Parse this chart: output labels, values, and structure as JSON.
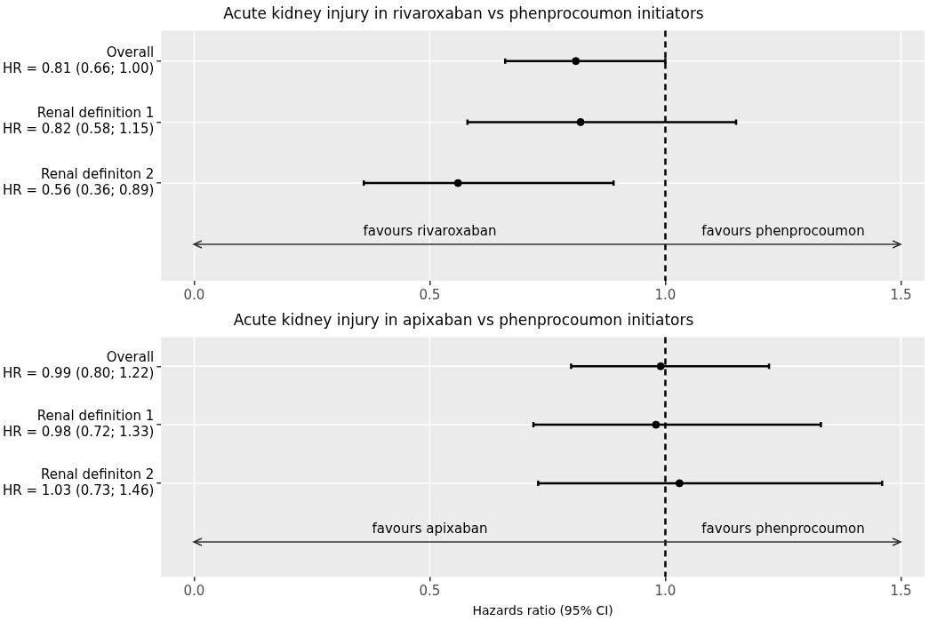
{
  "chart_data": [
    {
      "type": "scatter",
      "orientation": "horizontal",
      "title": "Acute kidney injury in rivaroxaban vs phenprocoumon initiators",
      "categories": [
        "Overall\nHR = 0.81 (0.66; 1.00)",
        "Renal definition 1\nHR = 0.82 (0.58; 1.15)",
        "Renal definiton 2\nHR = 0.56 (0.36; 0.89)"
      ],
      "series": [
        {
          "color": "#000000",
          "values": [
            0.81,
            0.82,
            0.56
          ],
          "errors": [
            [
              0.66,
              1.0
            ],
            [
              0.58,
              1.15
            ],
            [
              0.36,
              0.89
            ]
          ]
        }
      ],
      "xlim": [
        -0.07,
        1.55
      ],
      "xticks": [
        {
          "value": 0,
          "label": "0.0"
        },
        {
          "value": 0.5,
          "label": "0.5"
        },
        {
          "value": 1,
          "label": "1.0"
        },
        {
          "value": 1.5,
          "label": "1.5"
        }
      ],
      "ref_lines": [
        {
          "axis": "x",
          "value": 1,
          "line_style": "dashed",
          "color": "#000000"
        }
      ],
      "annotations": [
        "favours rivaroxaban",
        "favours phenprocoumon"
      ],
      "grid": true,
      "legend": false,
      "marker": "circle"
    },
    {
      "type": "scatter",
      "orientation": "horizontal",
      "title": "Acute kidney injury in apixaban vs phenprocoumon initiators",
      "xlabel": "Hazards ratio (95% CI)",
      "categories": [
        "Overall\nHR = 0.99 (0.80; 1.22)",
        "Renal definition 1\nHR = 0.98 (0.72; 1.33)",
        "Renal definiton 2\nHR = 1.03 (0.73; 1.46)"
      ],
      "series": [
        {
          "color": "#000000",
          "values": [
            0.99,
            0.98,
            1.03
          ],
          "errors": [
            [
              0.8,
              1.22
            ],
            [
              0.72,
              1.33
            ],
            [
              0.73,
              1.46
            ]
          ]
        }
      ],
      "xlim": [
        -0.07,
        1.55
      ],
      "xticks": [
        {
          "value": 0,
          "label": "0.0"
        },
        {
          "value": 0.5,
          "label": "0.5"
        },
        {
          "value": 1,
          "label": "1.0"
        },
        {
          "value": 1.5,
          "label": "1.5"
        }
      ],
      "ref_lines": [
        {
          "axis": "x",
          "value": 1,
          "line_style": "dashed",
          "color": "#000000"
        }
      ],
      "annotations": [
        "favours apixaban",
        "favours phenprocoumon"
      ],
      "grid": true,
      "legend": false,
      "marker": "circle"
    }
  ]
}
